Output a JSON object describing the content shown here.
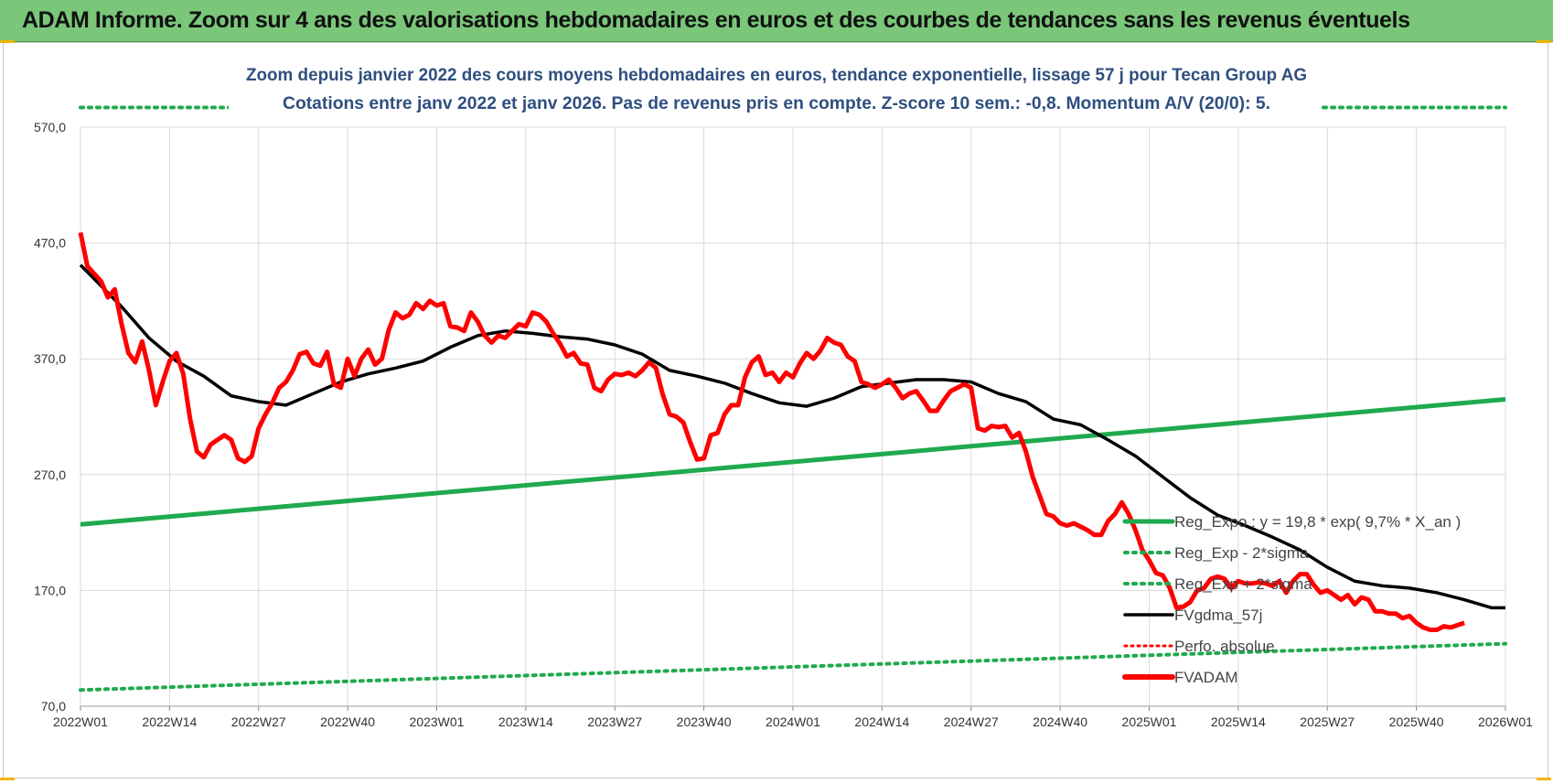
{
  "banner": {
    "title": "ADAM Informe. Zoom sur 4 ans des valorisations hebdomadaires en euros et des courbes de tendances sans les revenus éventuels"
  },
  "colors": {
    "banner_bg": "#7ac77a",
    "title_text": "#2f4f7f",
    "fvadam": "#ff0000",
    "fvgdma": "#000000",
    "reg_expo": "#1faa4e",
    "sigma_bands": "#1faa4e",
    "perfo": "#ff0000",
    "grid": "#d9d9d9"
  },
  "chart_data": {
    "type": "line",
    "title": "Zoom depuis janvier 2022 des cours moyens hebdomadaires en euros, tendance exponentielle, lissage 57 j pour Tecan Group AG",
    "subtitle": "Cotations entre janv 2022 et janv 2026. Pas de revenus pris en compte. Z-score 10 sem.: -0,8. Momentum A/V (20/0): 5.",
    "xlabel": "",
    "ylabel": "",
    "ylim": [
      70,
      570
    ],
    "x_tick_labels": [
      "2022W01",
      "2022W14",
      "2022W27",
      "2022W40",
      "2023W01",
      "2023W14",
      "2023W27",
      "2023W40",
      "2024W01",
      "2024W14",
      "2024W27",
      "2024W40",
      "2025W01",
      "2025W14",
      "2025W27",
      "2025W40",
      "2026W01"
    ],
    "y_tick_labels": [
      "70,0",
      "170,0",
      "270,0",
      "370,0",
      "470,0",
      "570,0"
    ],
    "legend_position": "lower-right",
    "series": [
      {
        "name": "Reg_Expo : y = 19,8 * exp( 9,7% * X_an )",
        "style": "solid-thick",
        "start": [
          0,
          227
        ],
        "end": [
          208,
          335
        ]
      },
      {
        "name": "Reg_Exp - 2*sigma",
        "style": "dotted",
        "start": [
          0,
          84
        ],
        "end": [
          208,
          124
        ]
      },
      {
        "name": "Reg_Exp + 2*sigma",
        "style": "dotted",
        "start": [
          0,
          587
        ],
        "end": [
          208,
          587
        ]
      },
      {
        "name": "FVgdma_57j",
        "style": "solid",
        "points": [
          [
            0,
            451
          ],
          [
            6,
            415
          ],
          [
            10,
            388
          ],
          [
            14,
            368
          ],
          [
            18,
            355
          ],
          [
            22,
            338
          ],
          [
            26,
            333
          ],
          [
            30,
            330
          ],
          [
            34,
            340
          ],
          [
            38,
            350
          ],
          [
            42,
            357
          ],
          [
            46,
            362
          ],
          [
            50,
            368
          ],
          [
            54,
            380
          ],
          [
            58,
            390
          ],
          [
            62,
            394
          ],
          [
            66,
            392
          ],
          [
            70,
            389
          ],
          [
            74,
            387
          ],
          [
            78,
            382
          ],
          [
            82,
            374
          ],
          [
            86,
            360
          ],
          [
            90,
            355
          ],
          [
            94,
            349
          ],
          [
            98,
            340
          ],
          [
            102,
            332
          ],
          [
            106,
            329
          ],
          [
            110,
            336
          ],
          [
            114,
            346
          ],
          [
            118,
            349
          ],
          [
            122,
            352
          ],
          [
            126,
            352
          ],
          [
            130,
            350
          ],
          [
            134,
            340
          ],
          [
            138,
            333
          ],
          [
            142,
            318
          ],
          [
            146,
            313
          ],
          [
            150,
            300
          ],
          [
            154,
            286
          ],
          [
            158,
            268
          ],
          [
            162,
            250
          ],
          [
            166,
            235
          ],
          [
            170,
            226
          ],
          [
            174,
            216
          ],
          [
            178,
            205
          ],
          [
            182,
            190
          ],
          [
            186,
            178
          ],
          [
            190,
            174
          ],
          [
            194,
            172
          ],
          [
            198,
            168
          ],
          [
            202,
            162
          ],
          [
            206,
            155
          ],
          [
            208,
            155
          ]
        ]
      },
      {
        "name": "Perfo. absolue",
        "style": "dotted",
        "points": []
      },
      {
        "name": "FVADAM",
        "style": "solid-thick",
        "points": [
          [
            0,
            479
          ],
          [
            1,
            450
          ],
          [
            3,
            437
          ],
          [
            4,
            423
          ],
          [
            5,
            430
          ],
          [
            6,
            400
          ],
          [
            7,
            375
          ],
          [
            8,
            367
          ],
          [
            9,
            385
          ],
          [
            10,
            360
          ],
          [
            11,
            330
          ],
          [
            12,
            350
          ],
          [
            13,
            368
          ],
          [
            14,
            375
          ],
          [
            15,
            357
          ],
          [
            16,
            318
          ],
          [
            17,
            290
          ],
          [
            18,
            285
          ],
          [
            19,
            296
          ],
          [
            20,
            300
          ],
          [
            21,
            304
          ],
          [
            22,
            300
          ],
          [
            23,
            284
          ],
          [
            24,
            281
          ],
          [
            25,
            286
          ],
          [
            26,
            310
          ],
          [
            27,
            322
          ],
          [
            28,
            332
          ],
          [
            29,
            345
          ],
          [
            30,
            350
          ],
          [
            31,
            360
          ],
          [
            32,
            374
          ],
          [
            33,
            376
          ],
          [
            34,
            366
          ],
          [
            35,
            364
          ],
          [
            36,
            376
          ],
          [
            37,
            348
          ],
          [
            38,
            345
          ],
          [
            39,
            370
          ],
          [
            40,
            355
          ],
          [
            41,
            370
          ],
          [
            42,
            378
          ],
          [
            43,
            365
          ],
          [
            44,
            370
          ],
          [
            45,
            395
          ],
          [
            46,
            410
          ],
          [
            47,
            405
          ],
          [
            48,
            408
          ],
          [
            49,
            418
          ],
          [
            50,
            413
          ],
          [
            51,
            420
          ],
          [
            52,
            416
          ],
          [
            53,
            418
          ],
          [
            54,
            398
          ],
          [
            55,
            397
          ],
          [
            56,
            394
          ],
          [
            57,
            410
          ],
          [
            58,
            402
          ],
          [
            59,
            390
          ],
          [
            60,
            384
          ],
          [
            61,
            390
          ],
          [
            62,
            388
          ],
          [
            63,
            394
          ],
          [
            64,
            400
          ],
          [
            65,
            398
          ],
          [
            66,
            410
          ],
          [
            67,
            408
          ],
          [
            68,
            402
          ],
          [
            69,
            392
          ],
          [
            70,
            383
          ],
          [
            71,
            372
          ],
          [
            72,
            375
          ],
          [
            73,
            366
          ],
          [
            74,
            365
          ],
          [
            75,
            345
          ],
          [
            76,
            342
          ],
          [
            77,
            352
          ],
          [
            78,
            357
          ],
          [
            79,
            356
          ],
          [
            80,
            358
          ],
          [
            81,
            355
          ],
          [
            82,
            360
          ],
          [
            83,
            367
          ],
          [
            84,
            362
          ],
          [
            85,
            339
          ],
          [
            86,
            322
          ],
          [
            87,
            320
          ],
          [
            88,
            315
          ],
          [
            89,
            298
          ],
          [
            90,
            283
          ],
          [
            91,
            284
          ],
          [
            92,
            304
          ],
          [
            93,
            306
          ],
          [
            94,
            322
          ],
          [
            95,
            330
          ],
          [
            96,
            330
          ],
          [
            97,
            354
          ],
          [
            98,
            367
          ],
          [
            99,
            372
          ],
          [
            100,
            356
          ],
          [
            101,
            358
          ],
          [
            102,
            350
          ],
          [
            103,
            358
          ],
          [
            104,
            354
          ],
          [
            105,
            366
          ],
          [
            106,
            375
          ],
          [
            107,
            370
          ],
          [
            108,
            377
          ],
          [
            109,
            388
          ],
          [
            110,
            384
          ],
          [
            111,
            382
          ],
          [
            112,
            372
          ],
          [
            113,
            368
          ],
          [
            114,
            350
          ],
          [
            115,
            348
          ],
          [
            116,
            345
          ],
          [
            117,
            348
          ],
          [
            118,
            352
          ],
          [
            119,
            345
          ],
          [
            120,
            336
          ],
          [
            121,
            340
          ],
          [
            122,
            342
          ],
          [
            123,
            334
          ],
          [
            124,
            325
          ],
          [
            125,
            325
          ],
          [
            126,
            334
          ],
          [
            127,
            342
          ],
          [
            128,
            345
          ],
          [
            129,
            348
          ],
          [
            130,
            345
          ],
          [
            131,
            310
          ],
          [
            132,
            308
          ],
          [
            133,
            312
          ],
          [
            134,
            311
          ],
          [
            135,
            312
          ],
          [
            136,
            302
          ],
          [
            137,
            306
          ],
          [
            138,
            290
          ],
          [
            139,
            268
          ],
          [
            140,
            252
          ],
          [
            141,
            236
          ],
          [
            142,
            234
          ],
          [
            143,
            228
          ],
          [
            144,
            226
          ],
          [
            145,
            228
          ],
          [
            146,
            225
          ],
          [
            147,
            222
          ],
          [
            148,
            218
          ],
          [
            149,
            218
          ],
          [
            150,
            230
          ],
          [
            151,
            236
          ],
          [
            152,
            246
          ],
          [
            153,
            236
          ],
          [
            154,
            222
          ],
          [
            155,
            205
          ],
          [
            156,
            196
          ],
          [
            157,
            185
          ],
          [
            158,
            183
          ],
          [
            159,
            172
          ],
          [
            160,
            155
          ],
          [
            161,
            156
          ],
          [
            162,
            160
          ],
          [
            163,
            170
          ],
          [
            164,
            172
          ],
          [
            165,
            180
          ],
          [
            166,
            182
          ],
          [
            167,
            180
          ],
          [
            168,
            172
          ],
          [
            169,
            178
          ],
          [
            170,
            176
          ],
          [
            171,
            176
          ],
          [
            172,
            177
          ],
          [
            173,
            176
          ],
          [
            174,
            174
          ],
          [
            175,
            178
          ],
          [
            176,
            168
          ],
          [
            177,
            178
          ],
          [
            178,
            184
          ],
          [
            179,
            184
          ],
          [
            180,
            175
          ],
          [
            181,
            168
          ],
          [
            182,
            170
          ],
          [
            183,
            166
          ],
          [
            184,
            162
          ],
          [
            185,
            166
          ],
          [
            186,
            158
          ],
          [
            187,
            164
          ],
          [
            188,
            162
          ],
          [
            189,
            152
          ],
          [
            190,
            152
          ],
          [
            191,
            150
          ],
          [
            192,
            150
          ],
          [
            193,
            146
          ],
          [
            194,
            148
          ],
          [
            195,
            142
          ],
          [
            196,
            138
          ],
          [
            197,
            136
          ],
          [
            198,
            136
          ],
          [
            199,
            139
          ],
          [
            200,
            138
          ],
          [
            201,
            140
          ],
          [
            202,
            142
          ]
        ]
      }
    ]
  }
}
